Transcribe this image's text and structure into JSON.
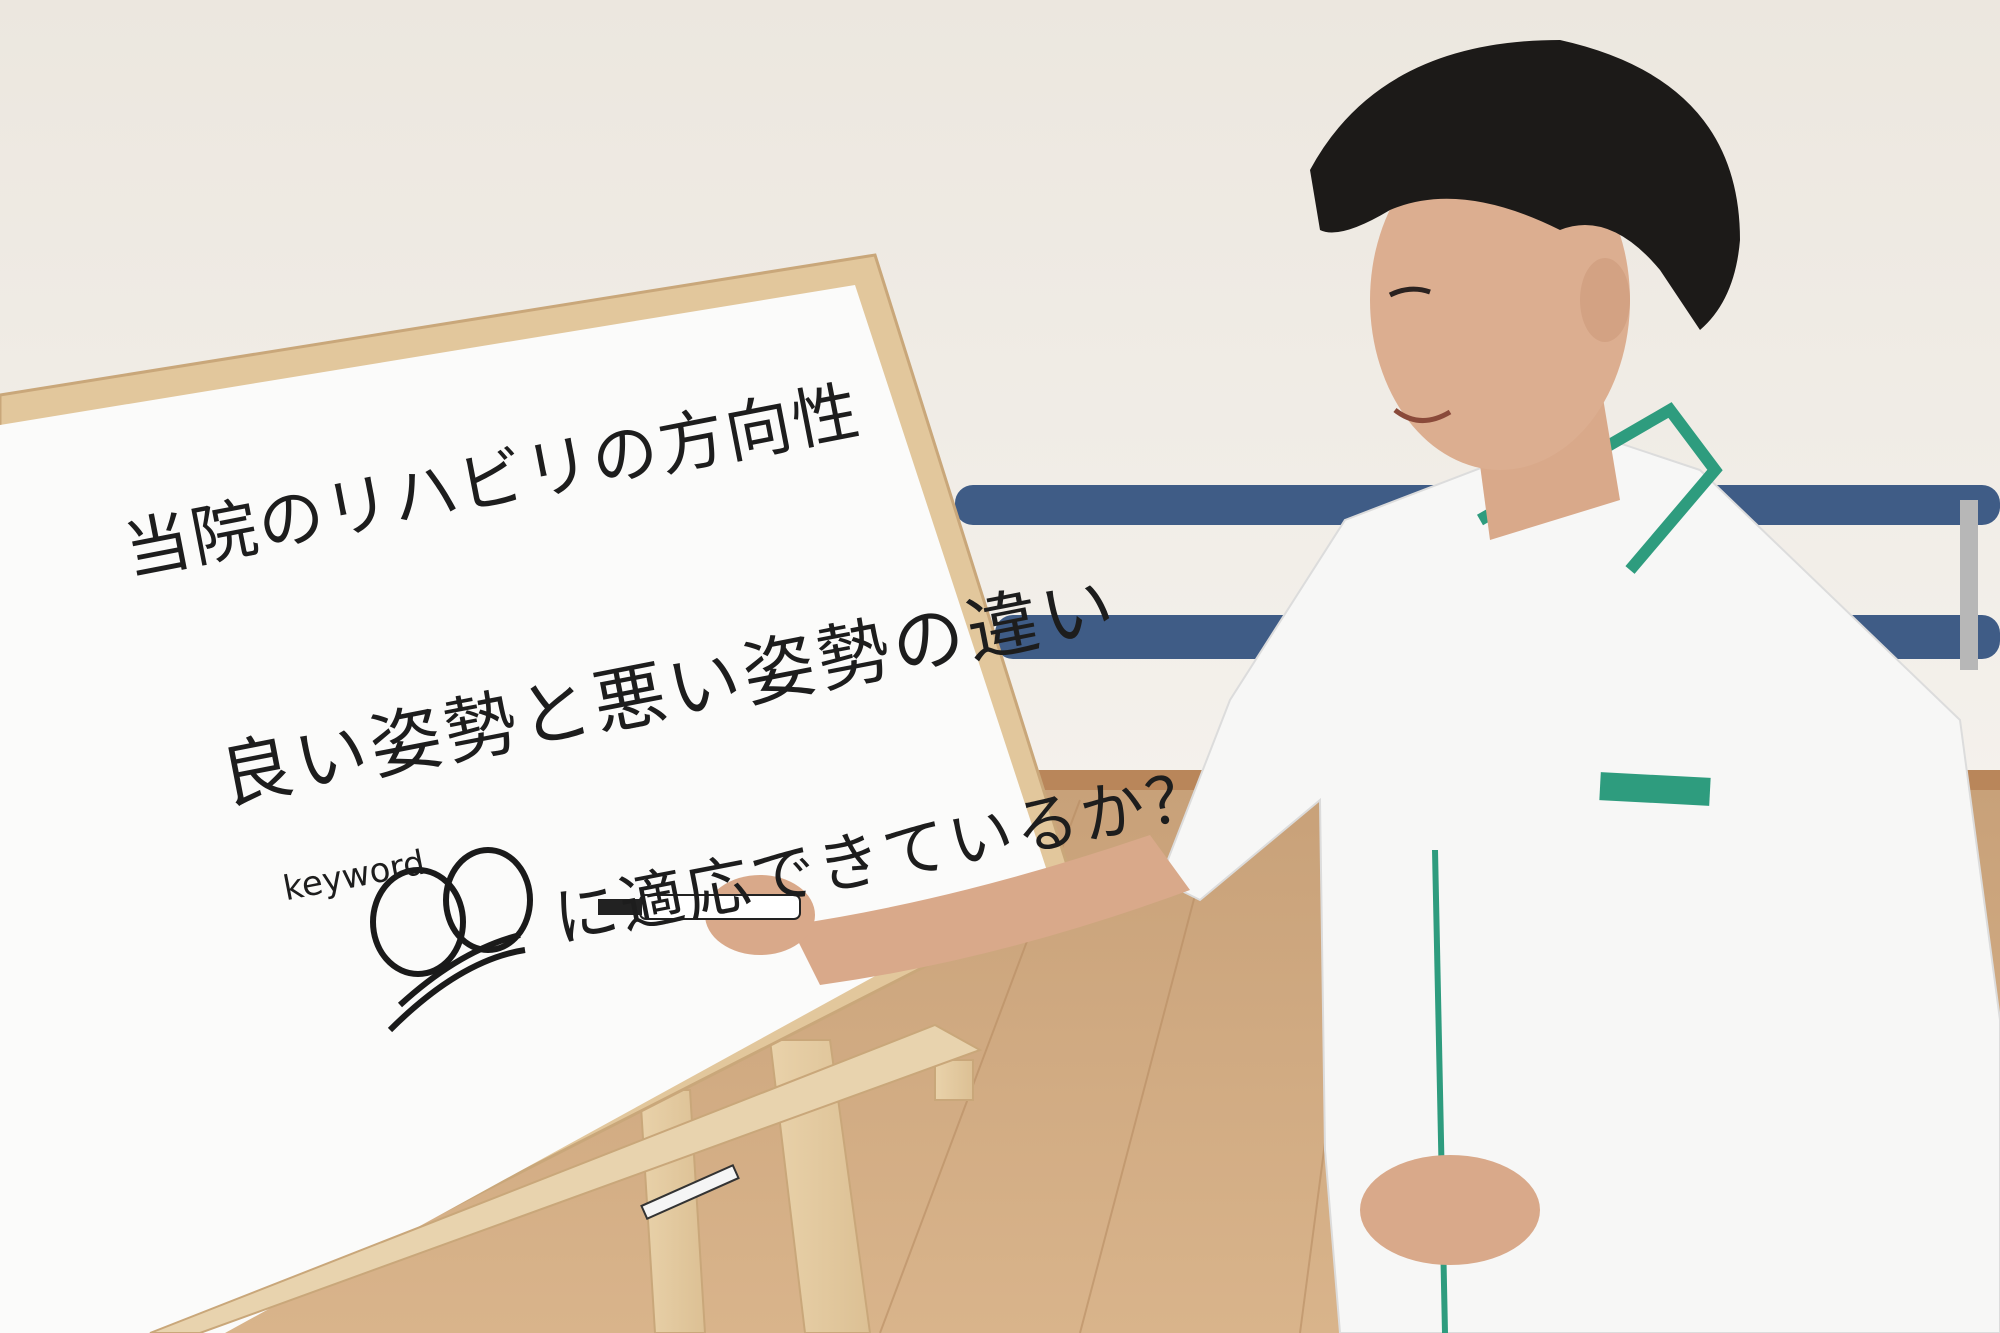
{
  "whiteboard": {
    "line1": "当院のリハビリの方向性",
    "line2": "良い姿勢と悪い姿勢の違い",
    "line3": "に適応できているか？",
    "keyword": "keyword"
  }
}
